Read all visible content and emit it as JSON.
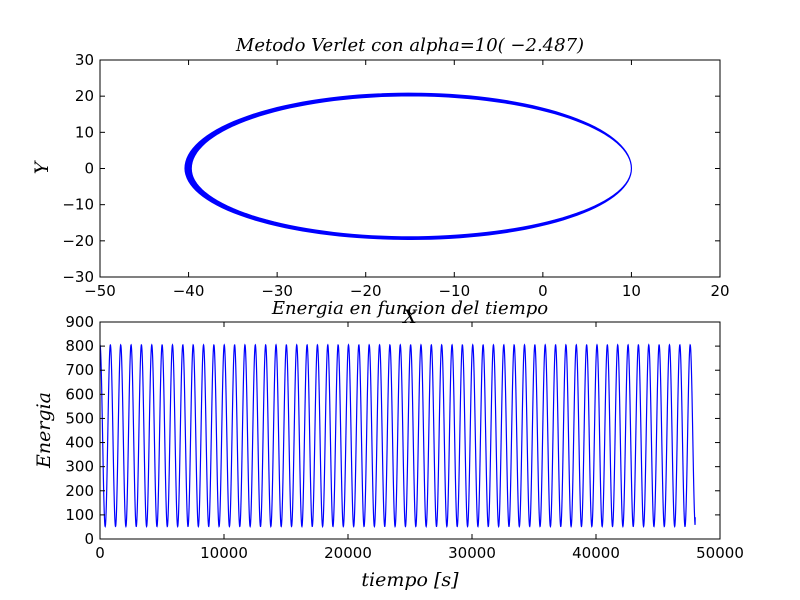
{
  "chart_data": [
    {
      "type": "line",
      "title": "$Metodo\\ Verlet\\ con\\ alpha=10^(-2.487)$",
      "title_display": "Metodo Verlet con alpha=10( −2.487)",
      "xlabel": "X",
      "ylabel": "Y",
      "xlim": [
        -50,
        20
      ],
      "ylim": [
        -30,
        30
      ],
      "xticks": [
        -50,
        -40,
        -30,
        -20,
        -10,
        0,
        10,
        20
      ],
      "yticks": [
        -30,
        -20,
        -10,
        0,
        10,
        20,
        30
      ],
      "xtick_labels": [
        "−50",
        "−40",
        "−30",
        "−20",
        "−10",
        "0",
        "10",
        "20"
      ],
      "ytick_labels": [
        "−30",
        "−20",
        "−10",
        "0",
        "10",
        "20",
        "30"
      ],
      "line_color": "#0000ff",
      "grid": false,
      "series": [
        {
          "orbit": {
            "perihelion_x": 10.0,
            "aphelion_x_range": [
              -40.4,
              -39.7
            ],
            "max_y_range": [
              20.1,
              20.8
            ],
            "min_y_range": [
              -19.6,
              -18.9
            ],
            "precession_turns": 60
          }
        }
      ]
    },
    {
      "type": "line",
      "title": "Energia en funcion del tiempo",
      "xlabel": "tiempo [s]",
      "ylabel": "Energia",
      "xlim": [
        0,
        50000
      ],
      "ylim": [
        0,
        900
      ],
      "xticks": [
        0,
        10000,
        20000,
        30000,
        40000,
        50000
      ],
      "yticks": [
        0,
        100,
        200,
        300,
        400,
        500,
        600,
        700,
        800,
        900
      ],
      "xtick_labels": [
        "0",
        "10000",
        "20000",
        "30000",
        "40000",
        "50000"
      ],
      "ytick_labels": [
        "0",
        "100",
        "200",
        "300",
        "400",
        "500",
        "600",
        "700",
        "800",
        "900"
      ],
      "line_color": "#0000ff",
      "grid": false,
      "series": [
        {
          "oscillation": {
            "max": 805,
            "min": 52,
            "period": 835,
            "t_start": 0,
            "t_end": 48000,
            "end_value": 90
          }
        }
      ]
    }
  ]
}
